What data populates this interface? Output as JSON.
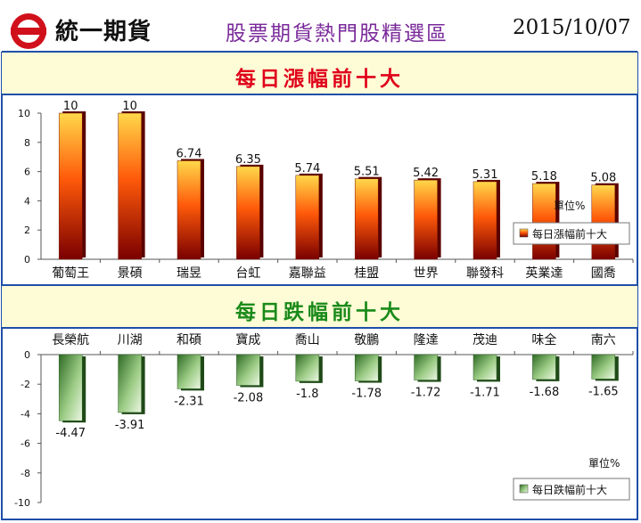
{
  "header": {
    "brand": "統一期貨",
    "zone_title": "股票期貨熱門股精選區",
    "date": "2015/10/07"
  },
  "colors": {
    "frame": "#1f4fa8",
    "band_bg": "#fdfcd6",
    "gain_title": "#e0001a",
    "loss_title": "#1a8a1a",
    "zone_title": "#7a2a9a",
    "logo_red": "#d0111b"
  },
  "chart_data": [
    {
      "type": "bar",
      "title": "每日漲幅前十大",
      "categories": [
        "葡萄王",
        "景碩",
        "瑞昱",
        "台虹",
        "嘉聯益",
        "桂盟",
        "世界",
        "聯發科",
        "英業達",
        "國喬"
      ],
      "series": [
        {
          "name": "每日漲幅前十大",
          "values": [
            10,
            10,
            6.74,
            6.35,
            5.74,
            5.51,
            5.42,
            5.31,
            5.18,
            5.08
          ]
        }
      ],
      "data_labels": [
        "10",
        "10",
        "6.74",
        "6.35",
        "5.74",
        "5.51",
        "5.42",
        "5.31",
        "5.18",
        "5.08"
      ],
      "unit_label": "單位%",
      "ylim": [
        0,
        10
      ],
      "yticks": [
        0,
        2,
        4,
        6,
        8,
        10
      ],
      "legend": "right",
      "grid": false
    },
    {
      "type": "bar",
      "title": "每日跌幅前十大",
      "categories": [
        "長榮航",
        "川湖",
        "和碩",
        "寶成",
        "喬山",
        "敬鵬",
        "隆達",
        "茂迪",
        "味全",
        "南六"
      ],
      "series": [
        {
          "name": "每日跌幅前十大",
          "values": [
            -4.47,
            -3.91,
            -2.31,
            -2.08,
            -1.8,
            -1.78,
            -1.72,
            -1.71,
            -1.68,
            -1.65
          ]
        }
      ],
      "data_labels": [
        "-4.47",
        "-3.91",
        "-2.31",
        "-2.08",
        "-1.8",
        "-1.78",
        "-1.72",
        "-1.71",
        "-1.68",
        "-1.65"
      ],
      "unit_label": "單位%",
      "ylim": [
        -10,
        0
      ],
      "yticks": [
        0,
        -2,
        -4,
        -6,
        -8,
        -10
      ],
      "legend": "bottom-right",
      "grid": false
    }
  ]
}
